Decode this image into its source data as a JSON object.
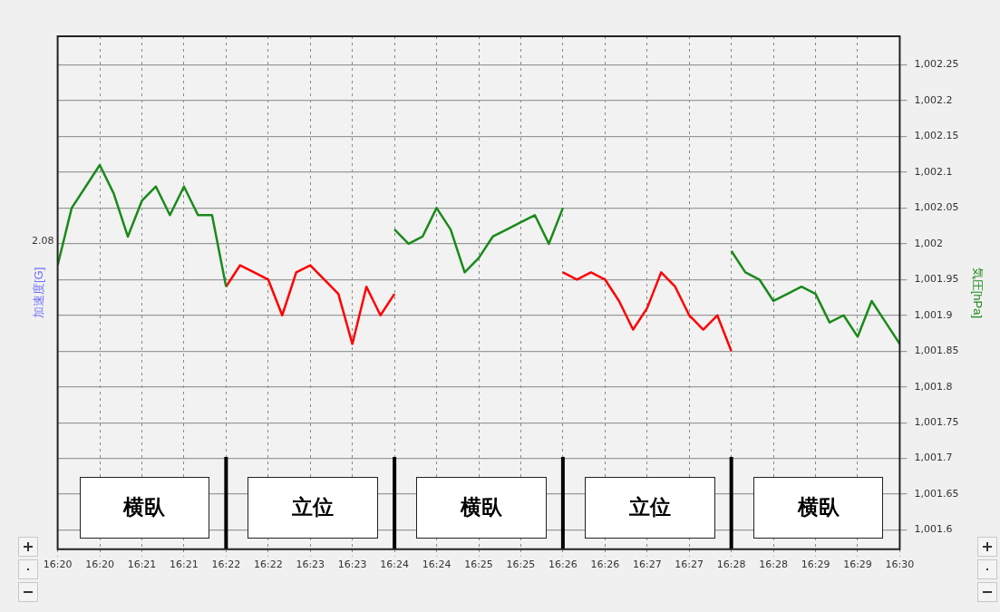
{
  "chart_data": {
    "type": "line",
    "ylabel": "加速度[G]",
    "y2label": "気圧[hPa]",
    "xlim": [
      16.329167,
      16.495833
    ],
    "xticks": [
      {
        "value": 16.329167,
        "label": "16:20"
      },
      {
        "value": 16.3375,
        "label": "16:20"
      },
      {
        "value": 16.345833,
        "label": "16:21"
      },
      {
        "value": 16.354167,
        "label": "16:21"
      },
      {
        "value": 16.3625,
        "label": "16:22"
      },
      {
        "value": 16.370833,
        "label": "16:22"
      },
      {
        "value": 16.379167,
        "label": "16:23"
      },
      {
        "value": 16.3875,
        "label": "16:23"
      },
      {
        "value": 16.395833,
        "label": "16:24"
      },
      {
        "value": 16.404167,
        "label": "16:24"
      },
      {
        "value": 16.4125,
        "label": "16:25"
      },
      {
        "value": 16.420833,
        "label": "16:25"
      },
      {
        "value": 16.429167,
        "label": "16:26"
      },
      {
        "value": 16.4375,
        "label": "16:26"
      },
      {
        "value": 16.445833,
        "label": "16:27"
      },
      {
        "value": 16.454167,
        "label": "16:27"
      },
      {
        "value": 16.4625,
        "label": "16:28"
      },
      {
        "value": 16.470833,
        "label": "16:28"
      },
      {
        "value": 16.479167,
        "label": "16:29"
      },
      {
        "value": 16.4875,
        "label": "16:29"
      },
      {
        "value": 16.495833,
        "label": "16:30"
      }
    ],
    "y2lim": [
      1001.573,
      1002.29
    ],
    "y2ticks": [
      {
        "value": 1001.6,
        "label": "1,001.6"
      },
      {
        "value": 1001.65,
        "label": "1,001.65"
      },
      {
        "value": 1001.7,
        "label": "1,001.7"
      },
      {
        "value": 1001.75,
        "label": "1,001.75"
      },
      {
        "value": 1001.8,
        "label": "1,001.8"
      },
      {
        "value": 1001.85,
        "label": "1,001.85"
      },
      {
        "value": 1001.9,
        "label": "1,001.9"
      },
      {
        "value": 1001.95,
        "label": "1,001.95"
      },
      {
        "value": 1002,
        "label": "1,002"
      },
      {
        "value": 1002.05,
        "label": "1,002.05"
      },
      {
        "value": 1002.1,
        "label": "1,002.1"
      },
      {
        "value": 1002.15,
        "label": "1,002.15"
      },
      {
        "value": 1002.2,
        "label": "1,002.2"
      },
      {
        "value": 1002.25,
        "label": "1,002.25"
      }
    ],
    "series": [
      {
        "color": "#1a8a1a",
        "axis": "y2",
        "x": [
          16.329167,
          16.331944,
          16.334722,
          16.3375,
          16.340278,
          16.343056,
          16.345833,
          16.348611,
          16.351389,
          16.354167,
          16.356944,
          16.359722,
          16.3625
        ],
        "values": [
          1001.97,
          1002.05,
          1002.08,
          1002.11,
          1002.07,
          1002.01,
          1002.06,
          1002.08,
          1002.04,
          1002.08,
          1002.04,
          1002.04,
          1001.94
        ]
      },
      {
        "color": "#ff0000",
        "axis": "y2",
        "x": [
          16.3625,
          16.365278,
          16.368056,
          16.370833,
          16.373611,
          16.376389,
          16.379167,
          16.381944,
          16.384722,
          16.3875,
          16.390278,
          16.393056,
          16.395833
        ],
        "values": [
          1001.94,
          1001.97,
          1001.96,
          1001.95,
          1001.9,
          1001.96,
          1001.97,
          1001.95,
          1001.93,
          1001.86,
          1001.94,
          1001.9,
          1001.93
        ]
      },
      {
        "color": "#1a8a1a",
        "axis": "y2",
        "x": [
          16.395833,
          16.398611,
          16.401389,
          16.404167,
          16.406944,
          16.409722,
          16.4125,
          16.415278,
          16.418056,
          16.420833,
          16.423611,
          16.426389,
          16.429167
        ],
        "values": [
          1002.02,
          1002.0,
          1002.01,
          1002.05,
          1002.02,
          1001.96,
          1001.98,
          1002.01,
          1002.02,
          1002.03,
          1002.04,
          1002.0,
          1002.05
        ]
      },
      {
        "color": "#ff0000",
        "axis": "y2",
        "x": [
          16.429167,
          16.431944,
          16.434722,
          16.4375,
          16.440278,
          16.443056,
          16.445833,
          16.448611,
          16.451389,
          16.454167,
          16.456944,
          16.459722,
          16.4625
        ],
        "values": [
          1001.96,
          1001.95,
          1001.96,
          1001.95,
          1001.92,
          1001.88,
          1001.91,
          1001.96,
          1001.94,
          1001.9,
          1001.88,
          1001.9,
          1001.85
        ]
      },
      {
        "color": "#1a8a1a",
        "axis": "y2",
        "x": [
          16.4625,
          16.465278,
          16.468056,
          16.470833,
          16.473611,
          16.476389,
          16.479167,
          16.481944,
          16.484722,
          16.4875,
          16.490278,
          16.493056,
          16.495833
        ],
        "values": [
          1001.99,
          1001.96,
          1001.95,
          1001.92,
          1001.93,
          1001.94,
          1001.93,
          1001.89,
          1001.9,
          1001.87,
          1001.92,
          1001.89,
          1001.86
        ]
      }
    ],
    "ref_lines": [
      {
        "axis": "x",
        "value": 16.3625,
        "color": "#000000"
      },
      {
        "axis": "x",
        "value": 16.395833,
        "color": "#000000"
      },
      {
        "axis": "x",
        "value": 16.429167,
        "color": "#000000"
      },
      {
        "axis": "x",
        "value": 16.4625,
        "color": "#000000"
      }
    ],
    "annotations": [
      "2.08",
      "横臥",
      "立位",
      "横臥",
      "立位",
      "横臥"
    ],
    "grid": true,
    "legend": false,
    "marker": "none",
    "line_style": "solid"
  }
}
